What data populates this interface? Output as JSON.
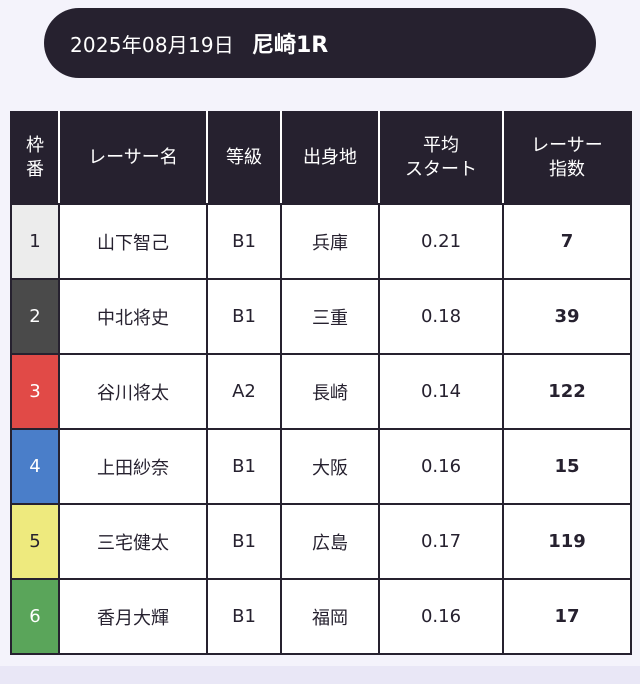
{
  "header": {
    "date": "2025年08月19日",
    "race": "尼崎1R"
  },
  "table": {
    "headers": {
      "waku_line1": "枠",
      "waku_line2": "番",
      "name": "レーサー名",
      "grade": "等級",
      "hometown": "出身地",
      "start_line1": "平均",
      "start_line2": "スタート",
      "index_line1": "レーサー",
      "index_line2": "指数"
    },
    "rows": [
      {
        "waku": "1",
        "name": "山下智己",
        "grade": "B1",
        "hometown": "兵庫",
        "start": "0.21",
        "index": "7"
      },
      {
        "waku": "2",
        "name": "中北将史",
        "grade": "B1",
        "hometown": "三重",
        "start": "0.18",
        "index": "39"
      },
      {
        "waku": "3",
        "name": "谷川将太",
        "grade": "A2",
        "hometown": "長崎",
        "start": "0.14",
        "index": "122"
      },
      {
        "waku": "4",
        "name": "上田紗奈",
        "grade": "B1",
        "hometown": "大阪",
        "start": "0.16",
        "index": "15"
      },
      {
        "waku": "5",
        "name": "三宅健太",
        "grade": "B1",
        "hometown": "広島",
        "start": "0.17",
        "index": "119"
      },
      {
        "waku": "6",
        "name": "香月大輝",
        "grade": "B1",
        "hometown": "福岡",
        "start": "0.16",
        "index": "17"
      }
    ]
  },
  "colors": {
    "header_bg": "#26212f",
    "waku": [
      "#ececec",
      "#4a4a4a",
      "#e14a47",
      "#4a7ec9",
      "#eeea7e",
      "#5aa55a"
    ],
    "waku_text": [
      "#26212f",
      "#ffffff",
      "#ffffff",
      "#ffffff",
      "#26212f",
      "#ffffff"
    ]
  }
}
